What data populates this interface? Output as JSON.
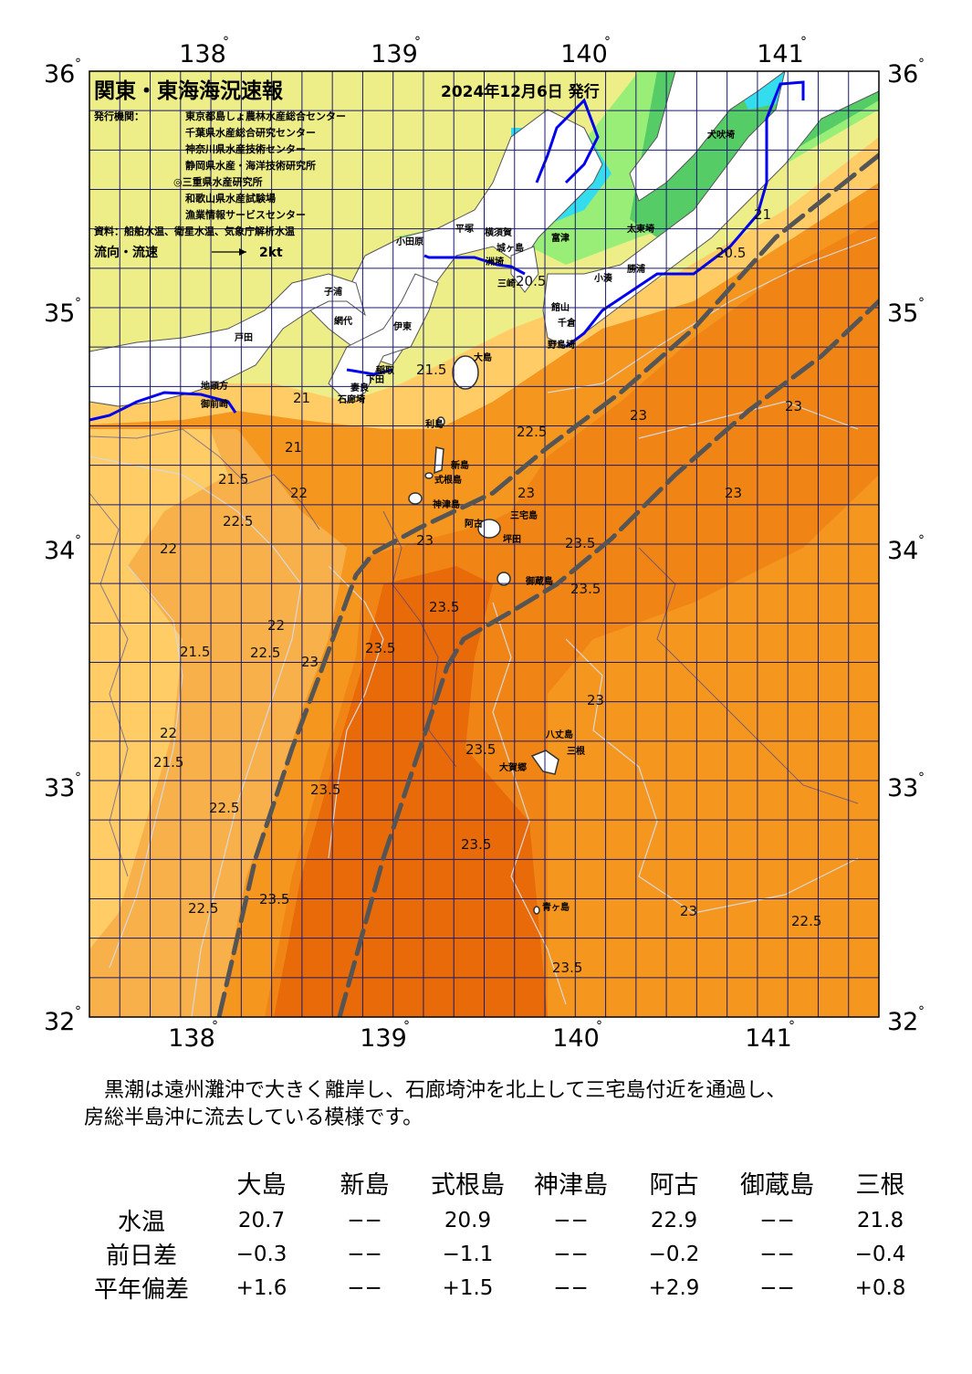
{
  "header": {
    "title": "関東・東海海況速報",
    "date": "2024年12月6日 発行",
    "issuers_label": "発行機関：",
    "issuers": [
      "東京都島しょ農林水産総合センター",
      "千葉県水産総合研究センター",
      "神奈川県水産技術センター",
      "静岡県水産・海洋技術研究所",
      "◎三重県水産研究所",
      "和歌山県水産試験場",
      "漁業情報サービスセンター"
    ],
    "source": "資料：船舶水温、衛星水温、気象庁解析水温",
    "legend_label": "流向・流速",
    "legend_speed": "2kt"
  },
  "axes": {
    "lon_ticks": [
      "138",
      "139",
      "140",
      "141"
    ],
    "lat_ticks": [
      "36",
      "35",
      "34",
      "33",
      "32"
    ],
    "degree_mark": "°"
  },
  "colors": {
    "land": "#ffffff",
    "coast_line": "#0000ee",
    "grid": "#1a1a6e",
    "sst_below_20": "#33ddee",
    "sst_20_205": "#55cc66",
    "sst_205_21": "#99ee77",
    "sst_21_215": "#eeee88",
    "sst_215_22": "#ffcc66",
    "sst_22_225": "#f7b04a",
    "sst_225_23": "#f5961f",
    "sst_23_235": "#f08414",
    "sst_235_plus": "#e86a08",
    "kuroshio_axis": "#555555"
  },
  "place_labels": [
    "犬吠埼",
    "太東埼",
    "勝浦",
    "小湊",
    "富津",
    "館山",
    "千倉",
    "野島埼",
    "洲埼",
    "三崎",
    "城ヶ島",
    "横須賀",
    "平塚",
    "小田原",
    "網代",
    "伊東",
    "稲取",
    "下田",
    "石廊埼",
    "妻良",
    "子浦",
    "戸田",
    "御前崎",
    "地頭方",
    "焼津",
    "大島",
    "利島",
    "新島",
    "式根島",
    "神津島",
    "阿古",
    "三宅島",
    "坪田",
    "御蔵島",
    "八丈島",
    "大賀郷",
    "三根",
    "青ヶ島"
  ],
  "isotherm_labels": [
    "20.5",
    "21",
    "21.5",
    "22",
    "22.5",
    "23",
    "23.5"
  ],
  "summary": [
    "　黒潮は遠州灘沖で大きく離岸し、石廊埼沖を北上して三宅島付近を通過し、",
    "房総半島沖に流去している模様です。"
  ],
  "table": {
    "stations": [
      "大島",
      "新島",
      "式根島",
      "神津島",
      "阿古",
      "御蔵島",
      "三根"
    ],
    "rows": [
      {
        "label": "水温",
        "values": [
          "20.7",
          "−−",
          "20.9",
          "−−",
          "22.9",
          "−−",
          "21.8"
        ]
      },
      {
        "label": "前日差",
        "values": [
          "−0.3",
          "−−",
          "−1.1",
          "−−",
          "−0.2",
          "−−",
          "−0.4"
        ]
      },
      {
        "label": "平年偏差",
        "values": [
          "+1.6",
          "−−",
          "+1.5",
          "−−",
          "+2.9",
          "−−",
          "+0.8"
        ]
      }
    ]
  }
}
